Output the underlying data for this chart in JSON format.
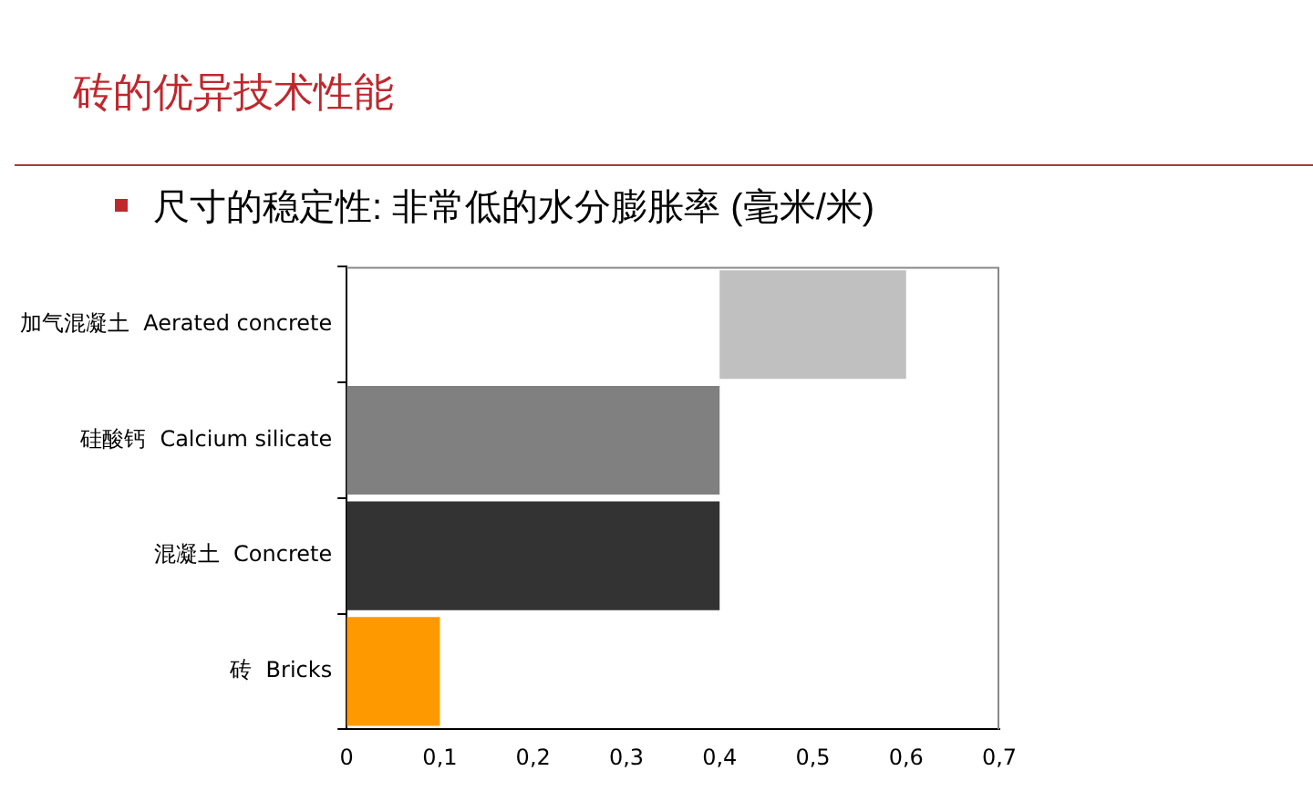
{
  "chart_data": {
    "type": "bar",
    "orientation": "horizontal",
    "title": "砖的优异技术性能",
    "subtitle": "尺寸的稳定性: 非常低的水分膨胀率 (毫米/米)",
    "categories": [
      "加气混凝土  Aerated concrete",
      "硅酸钙  Calcium silicate",
      "混凝土  Concrete",
      "砖  Bricks"
    ],
    "values": [
      0.2,
      0.4,
      0.4,
      0.1
    ],
    "base": [
      0.4,
      0,
      0,
      0
    ],
    "colors": [
      "#c0c0c0",
      "#808080",
      "#333333",
      "#ff9900"
    ],
    "xlim": [
      0,
      0.7
    ],
    "xticks": [
      0,
      {
        "value": 0.1,
        "label": "0,1"
      },
      {
        "value": 0.2,
        "label": "0,2"
      },
      {
        "value": 0.3,
        "label": "0,3"
      },
      {
        "value": 0.4,
        "label": "0,4"
      },
      {
        "value": 0.5,
        "label": "0,5"
      },
      {
        "value": 0.6,
        "label": "0,6"
      },
      {
        "value": 0.7,
        "label": "0,7"
      }
    ],
    "grid": false,
    "legend": false
  }
}
